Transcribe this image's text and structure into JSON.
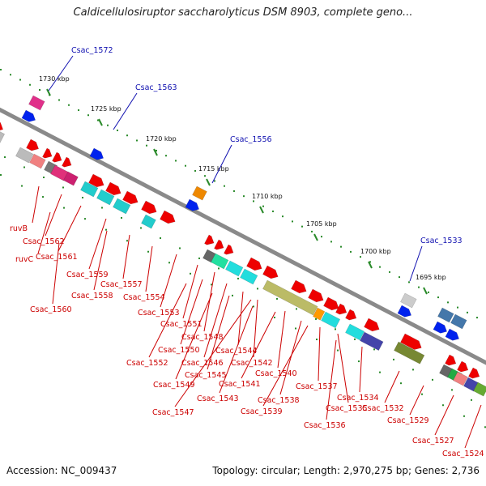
{
  "title": "Caldicellulosiruptor saccharolyticus DSM 8903, complete geno...",
  "footer": {
    "accession": "Accession: NC_009437",
    "summary": "Topology: circular; Length: 2,970,275 bp; Genes: 2,736"
  },
  "colors": {
    "backbone": "#8a8a8a",
    "forward_gene": "#ee0000",
    "label_red": "#cc0000",
    "label_blue": "#1010b0",
    "tick_green": "#2a8a2a"
  },
  "scale_ticks": [
    "1730 kbp",
    "1725 kbp",
    "1720 kbp",
    "1715 kbp",
    "1710 kbp",
    "1705 kbp",
    "1700 kbp",
    "1695 kbp"
  ],
  "blue_labels": [
    "Csac_1572",
    "Csac_1563",
    "Csac_1556",
    "Csac_1533"
  ],
  "red_labels": [
    "ruvB",
    "Csac_1562",
    "ruvC",
    "Csac_1561",
    "Csac_1559",
    "Csac_1557",
    "Csac_1558",
    "Csac_1560",
    "Csac_1554",
    "Csac_1553",
    "Csac_1551",
    "Csac_1548",
    "Csac_1550",
    "Csac_1552",
    "Csac_1546",
    "Csac_1544",
    "Csac_1545",
    "Csac_1549",
    "Csac_1542",
    "Csac_1540",
    "Csac_1541",
    "Csac_1543",
    "Csac_1538",
    "Csac_1537",
    "Csac_1539",
    "Csac_1535",
    "Csac_1534",
    "Csac_1536",
    "Csac_1547",
    "Csac_1532",
    "Csac_1529",
    "Csac_1527",
    "Csac_1524"
  ]
}
